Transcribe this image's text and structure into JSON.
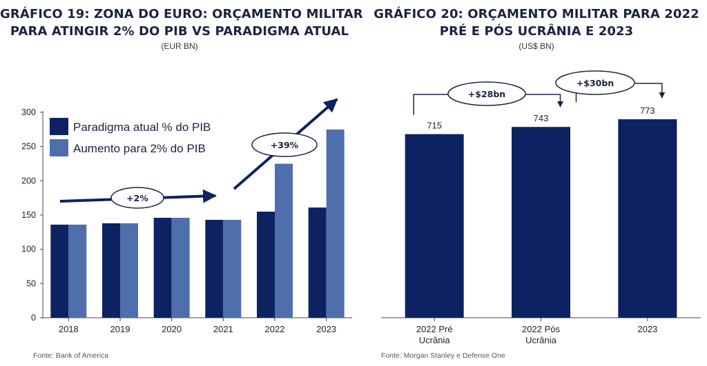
{
  "chart_data": [
    {
      "type": "bar",
      "title_lines": [
        "GRÁFICO 19: ZONA DO EURO: ORÇAMENTO MILITAR",
        "PARA ATINGIR 2% DO PIB VS PARADIGMA ATUAL"
      ],
      "subtitle": "(EUR BN)",
      "categories": [
        "2018",
        "2019",
        "2020",
        "2021",
        "2022",
        "2023"
      ],
      "series": [
        {
          "name": "Paradigma atual % do PIB",
          "values": [
            136,
            138,
            146,
            143,
            155,
            161
          ],
          "color": "#0d2260"
        },
        {
          "name": "Aumento para 2% do PIB",
          "values": [
            136,
            138,
            146,
            143,
            225,
            275
          ],
          "color": "#4f6fac"
        }
      ],
      "ylim": [
        0,
        300
      ],
      "yticks": [
        0,
        50,
        100,
        150,
        200,
        250,
        300
      ],
      "legend_position": "top-left",
      "annotations": [
        "+2%",
        "+39%"
      ],
      "source": "Fonte: Bank of America"
    },
    {
      "type": "bar",
      "title_lines": [
        "GRÁFICO 20: ORÇAMENTO MILITAR PARA 2022",
        "PRÉ E PÓS UCRÂNIA E 2023"
      ],
      "subtitle": "(US$ BN)",
      "categories": [
        [
          "2022 Pré",
          "Ucrânia"
        ],
        [
          "2022 Pós",
          "Ucrânia"
        ],
        [
          "2023"
        ]
      ],
      "values": [
        715,
        743,
        773
      ],
      "value_labels": [
        "715",
        "743",
        "773"
      ],
      "color": "#0d2260",
      "annotations": [
        "+$28bn",
        "+$30bn"
      ],
      "source": "Fonte: Morgan Stanley e Defense One"
    }
  ]
}
